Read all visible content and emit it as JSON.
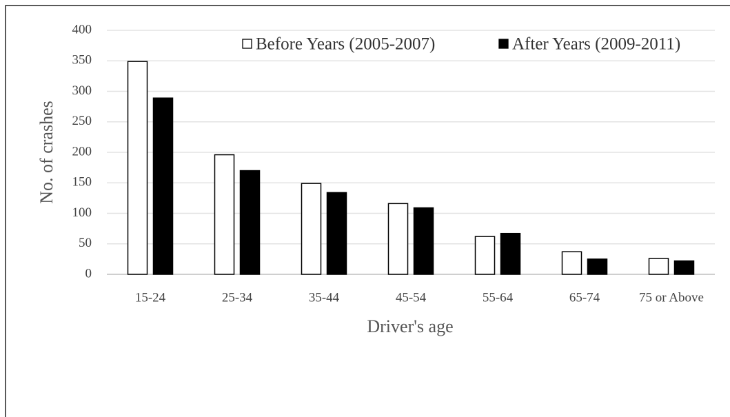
{
  "chart_data": {
    "type": "bar",
    "categories": [
      "15-24",
      "25-34",
      "35-44",
      "45-54",
      "55-64",
      "65-74",
      "75 or Above"
    ],
    "series": [
      {
        "name": "Before Years (2005-2007)",
        "color": "#ffffff",
        "values": [
          349,
          196,
          149,
          116,
          62,
          37,
          26
        ]
      },
      {
        "name": "After Years (2009-2011)",
        "color": "#000000",
        "values": [
          289,
          170,
          134,
          109,
          67,
          25,
          22
        ]
      }
    ],
    "x_label": "Driver's age",
    "y_label": "No. of crashes",
    "ylim": [
      0,
      400
    ],
    "yticks": [
      0,
      50,
      100,
      150,
      200,
      250,
      300,
      350,
      400
    ],
    "grid": true,
    "legend": "upper right"
  }
}
